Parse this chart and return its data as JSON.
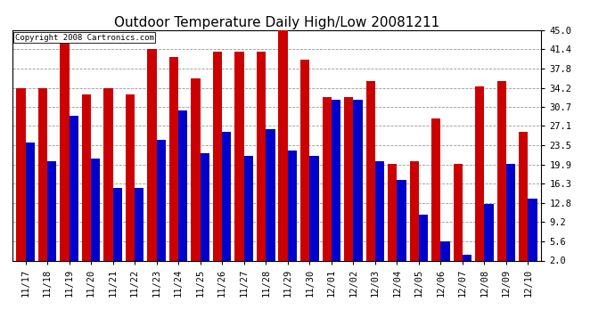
{
  "title": "Outdoor Temperature Daily High/Low 20081211",
  "copyright": "Copyright 2008 Cartronics.com",
  "categories": [
    "11/17",
    "11/18",
    "11/19",
    "11/20",
    "11/21",
    "11/22",
    "11/23",
    "11/24",
    "11/25",
    "11/26",
    "11/27",
    "11/28",
    "11/29",
    "11/30",
    "12/01",
    "12/02",
    "12/03",
    "12/04",
    "12/05",
    "12/06",
    "12/07",
    "12/08",
    "12/09",
    "12/10"
  ],
  "highs": [
    34.2,
    34.2,
    42.5,
    33.0,
    34.2,
    33.0,
    41.4,
    40.0,
    36.0,
    41.0,
    41.0,
    41.0,
    45.0,
    39.5,
    32.5,
    32.5,
    35.5,
    20.0,
    20.5,
    28.5,
    20.0,
    34.5,
    35.5,
    26.0
  ],
  "lows": [
    24.0,
    20.5,
    29.0,
    21.0,
    15.5,
    15.5,
    24.5,
    30.0,
    22.0,
    26.0,
    21.5,
    26.5,
    22.5,
    21.5,
    32.0,
    32.0,
    20.5,
    17.0,
    10.5,
    5.5,
    3.0,
    12.5,
    20.0,
    13.5
  ],
  "high_color": "#cc0000",
  "low_color": "#0000cc",
  "bg_color": "#ffffff",
  "yticks": [
    2.0,
    5.6,
    9.2,
    12.8,
    16.3,
    19.9,
    23.5,
    27.1,
    30.7,
    34.2,
    37.8,
    41.4,
    45.0
  ],
  "ymin": 2.0,
  "ymax": 45.0,
  "grid_color": "#999999",
  "title_fontsize": 11,
  "tick_fontsize": 7.5,
  "bar_width": 0.42
}
